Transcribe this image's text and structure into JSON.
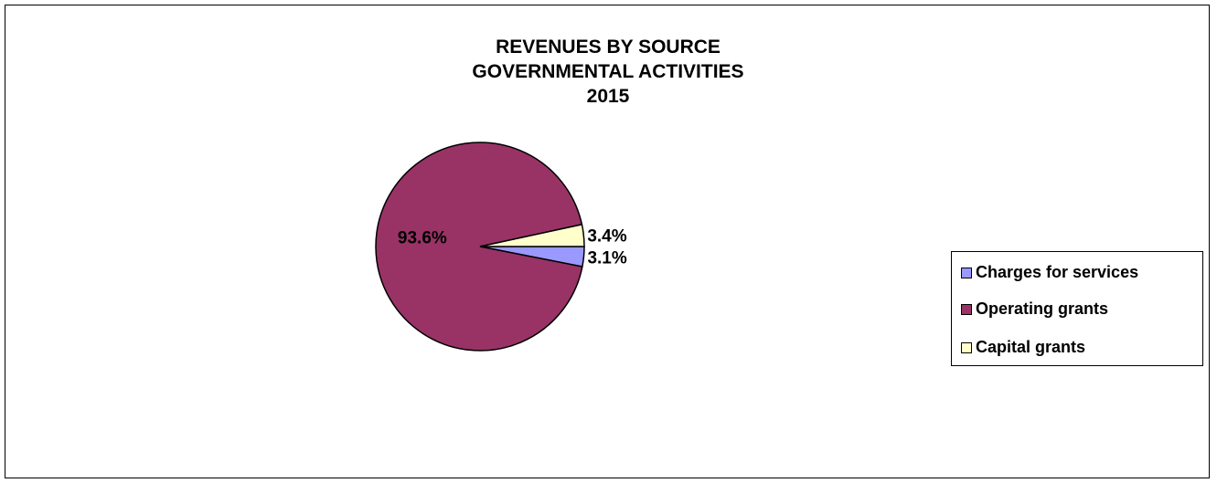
{
  "chart_data": {
    "type": "pie",
    "title": [
      "REVENUES BY SOURCE",
      "GOVERNMENTAL ACTIVITIES",
      "2015"
    ],
    "series": [
      {
        "name": "Charges for services",
        "value": 3.1,
        "label": "3.1%",
        "color": "#9999FF"
      },
      {
        "name": "Operating grants",
        "value": 93.6,
        "label": "93.6%",
        "color": "#993366"
      },
      {
        "name": "Capital grants",
        "value": 3.4,
        "label": "3.4%",
        "color": "#FFFFCC"
      }
    ],
    "legend_position": "right"
  }
}
